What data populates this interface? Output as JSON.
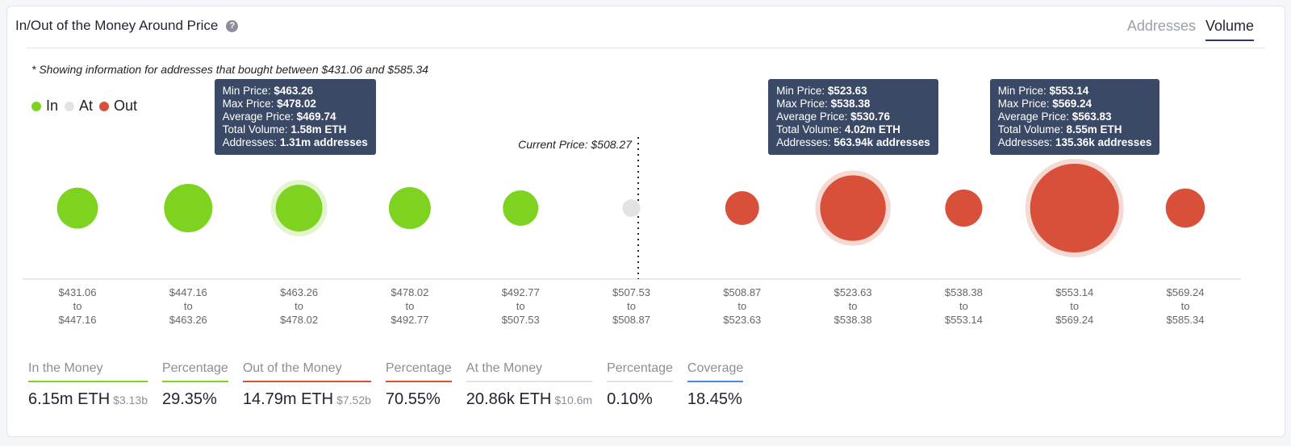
{
  "header": {
    "title": "In/Out of the Money Around Price",
    "help_icon": "question-circle-icon",
    "tabs": [
      {
        "label": "Addresses",
        "active": false
      },
      {
        "label": "Volume",
        "active": true
      }
    ]
  },
  "note": "* Showing information for addresses that bought between $431.06 and $585.34",
  "colors": {
    "in": "#7ed321",
    "at": "#e3e3e3",
    "out": "#d9503a",
    "tooltip": "#3a4a66",
    "coverage": "#4a86e8"
  },
  "chart_data": {
    "type": "bubble",
    "legend": [
      {
        "name": "In",
        "color": "#7ed321"
      },
      {
        "name": "At",
        "color": "#e3e3e3"
      },
      {
        "name": "Out",
        "color": "#d9503a"
      }
    ],
    "legend_placement": "top-left",
    "current_price_label": "Current Price: $508.27",
    "current_price": 508.27,
    "bins": [
      {
        "from": "$431.06",
        "to": "$447.16",
        "status": "in",
        "volume_m": 1.05
      },
      {
        "from": "$447.16",
        "to": "$463.26",
        "status": "in",
        "volume_m": 1.74
      },
      {
        "from": "$463.26",
        "to": "$478.02",
        "status": "in",
        "volume_m": 1.58,
        "highlight": true
      },
      {
        "from": "$478.02",
        "to": "$492.77",
        "status": "in",
        "volume_m": 1.13
      },
      {
        "from": "$492.77",
        "to": "$507.53",
        "status": "in",
        "volume_m": 0.65
      },
      {
        "from": "$507.53",
        "to": "$508.87",
        "status": "at",
        "volume_m": 0.02
      },
      {
        "from": "$508.87",
        "to": "$523.63",
        "status": "out",
        "volume_m": 0.55
      },
      {
        "from": "$523.63",
        "to": "$538.38",
        "status": "out",
        "volume_m": 4.02,
        "highlight": true
      },
      {
        "from": "$538.38",
        "to": "$553.14",
        "status": "out",
        "volume_m": 0.76
      },
      {
        "from": "$553.14",
        "to": "$569.24",
        "status": "out",
        "volume_m": 8.55,
        "highlight": true
      },
      {
        "from": "$569.24",
        "to": "$585.34",
        "status": "out",
        "volume_m": 0.91
      }
    ],
    "to_word": "to",
    "tooltips": [
      {
        "bin": 2,
        "rows": [
          [
            "Min Price: ",
            "$463.26"
          ],
          [
            "Max Price: ",
            "$478.02"
          ],
          [
            "Average Price: ",
            "$469.74"
          ],
          [
            "Total Volume: ",
            "1.58m ETH"
          ],
          [
            "Addresses: ",
            "1.31m addresses"
          ]
        ]
      },
      {
        "bin": 7,
        "rows": [
          [
            "Min Price: ",
            "$523.63"
          ],
          [
            "Max Price: ",
            "$538.38"
          ],
          [
            "Average Price: ",
            "$530.76"
          ],
          [
            "Total Volume: ",
            "4.02m ETH"
          ],
          [
            "Addresses: ",
            "563.94k addresses"
          ]
        ]
      },
      {
        "bin": 9,
        "rows": [
          [
            "Min Price: ",
            "$553.14"
          ],
          [
            "Max Price: ",
            "$569.24"
          ],
          [
            "Average Price: ",
            "$563.83"
          ],
          [
            "Total Volume: ",
            "8.55m ETH"
          ],
          [
            "Addresses: ",
            "135.36k addresses"
          ]
        ]
      }
    ]
  },
  "stats": [
    {
      "label": "In the Money",
      "value": "6.15m ETH",
      "sub": "$3.13b",
      "color": "#7ed321"
    },
    {
      "label": "Percentage",
      "value": "29.35%",
      "color": "#7ed321"
    },
    {
      "label": "Out of the Money",
      "value": "14.79m ETH",
      "sub": "$7.52b",
      "color": "#d9503a"
    },
    {
      "label": "Percentage",
      "value": "70.55%",
      "color": "#d9503a"
    },
    {
      "label": "At the Money",
      "value": "20.86k ETH",
      "sub": "$10.6m",
      "color": "#e3e3e3"
    },
    {
      "label": "Percentage",
      "value": "0.10%",
      "color": "#e3e3e3"
    },
    {
      "label": "Coverage",
      "value": "18.45%",
      "color": "#4a86e8"
    }
  ]
}
